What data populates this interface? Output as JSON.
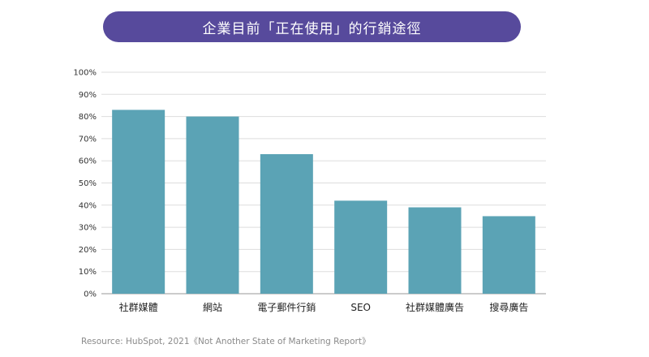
{
  "title": "企業目前「正在使用」的行銷途徑",
  "source": "Resource: HubSpot, 2021《Not Another State of Marketing Report》",
  "chart_data": {
    "type": "bar",
    "title": "企業目前「正在使用」的行銷途徑",
    "categories": [
      "社群媒體",
      "網站",
      "電子郵件行銷",
      "SEO",
      "社群媒體廣告",
      "搜尋廣告"
    ],
    "values": [
      83,
      80,
      63,
      42,
      39,
      35
    ],
    "ylim": [
      0,
      100
    ],
    "yticks": [
      "0%",
      "10%",
      "20%",
      "30%",
      "40%",
      "50%",
      "60%",
      "70%",
      "80%",
      "90%",
      "100%"
    ],
    "xlabel": "",
    "ylabel": "",
    "grid": true,
    "bar_color": "#5ba3b5"
  }
}
